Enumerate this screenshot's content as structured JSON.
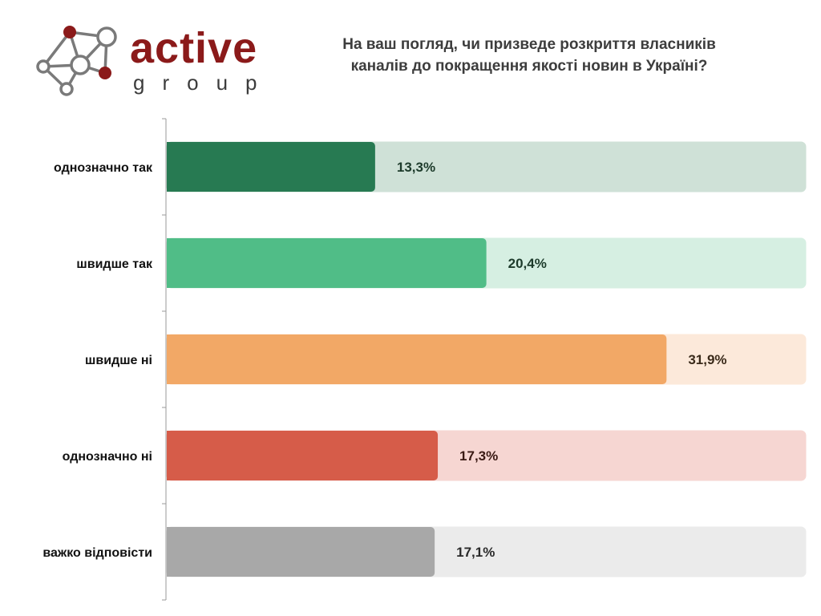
{
  "logo": {
    "word": "active",
    "sub": "group",
    "colors": {
      "dark_red": "#8b1a1a",
      "node_stroke": "#7a7a7a"
    },
    "icon": "network-nodes-icon"
  },
  "title_line1": "На ваш погляд, чи призведе розкриття власників",
  "title_line2": "каналів до покращення якості новин в Україні?",
  "chart_data": {
    "type": "bar",
    "orientation": "horizontal",
    "categories": [
      "однозначно так",
      "швидше так",
      "швидше ні",
      "однозначно ні",
      "важко відповісти"
    ],
    "values": [
      13.3,
      20.4,
      31.9,
      17.3,
      17.1
    ],
    "value_labels": [
      "13,3%",
      "20,4%",
      "31,9%",
      "17,3%",
      "17,1%"
    ],
    "xlim": [
      0,
      36
    ],
    "unit": "%",
    "colors": [
      "#277a52",
      "#50bd87",
      "#f2a866",
      "#d65c49",
      "#a8a8a8"
    ],
    "track_colors": [
      "#cfe1d7",
      "#d6efe2",
      "#fce9da",
      "#f6d6d2",
      "#ebebeb"
    ],
    "label_colors": [
      "#1d3b2b",
      "#1d3b2b",
      "#3a2a1a",
      "#3a1a14",
      "#2a2a2a"
    ],
    "grid": false,
    "legend": "none"
  }
}
